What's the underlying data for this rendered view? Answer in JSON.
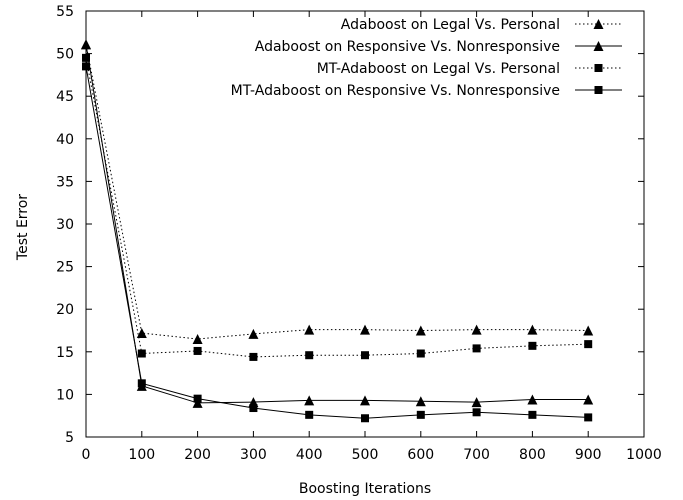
{
  "chart_data": {
    "type": "line",
    "title": "",
    "xlabel": "Boosting Iterations",
    "ylabel": "Test Error",
    "xlim": [
      0,
      1000
    ],
    "ylim": [
      5,
      55
    ],
    "xticks": [
      0,
      100,
      200,
      300,
      400,
      500,
      600,
      700,
      800,
      900,
      1000
    ],
    "yticks": [
      5,
      10,
      15,
      20,
      25,
      30,
      35,
      40,
      45,
      50,
      55
    ],
    "grid": false,
    "legend_position": "top-right",
    "x": [
      0,
      100,
      200,
      300,
      400,
      500,
      600,
      700,
      800,
      900
    ],
    "series": [
      {
        "name": "Adaboost on Legal Vs. Personal",
        "line_style": "dotted",
        "marker": "triangle",
        "values": [
          51.1,
          17.2,
          16.5,
          17.1,
          17.6,
          17.6,
          17.5,
          17.6,
          17.6,
          17.5
        ]
      },
      {
        "name": "Adaboost on Responsive Vs. Nonresponsive",
        "line_style": "solid",
        "marker": "triangle",
        "values": [
          51.1,
          11.0,
          9.0,
          9.1,
          9.3,
          9.3,
          9.2,
          9.1,
          9.4,
          9.4
        ]
      },
      {
        "name": "MT-Adaboost on Legal Vs. Personal",
        "line_style": "dotted",
        "marker": "square",
        "values": [
          49.5,
          14.8,
          15.1,
          14.4,
          14.6,
          14.6,
          14.8,
          15.4,
          15.7,
          15.9
        ]
      },
      {
        "name": "MT-Adaboost on Responsive Vs. Nonresponsive",
        "line_style": "solid",
        "marker": "square",
        "values": [
          48.5,
          11.3,
          9.5,
          8.4,
          7.6,
          7.2,
          7.6,
          7.9,
          7.6,
          7.3
        ]
      }
    ]
  }
}
